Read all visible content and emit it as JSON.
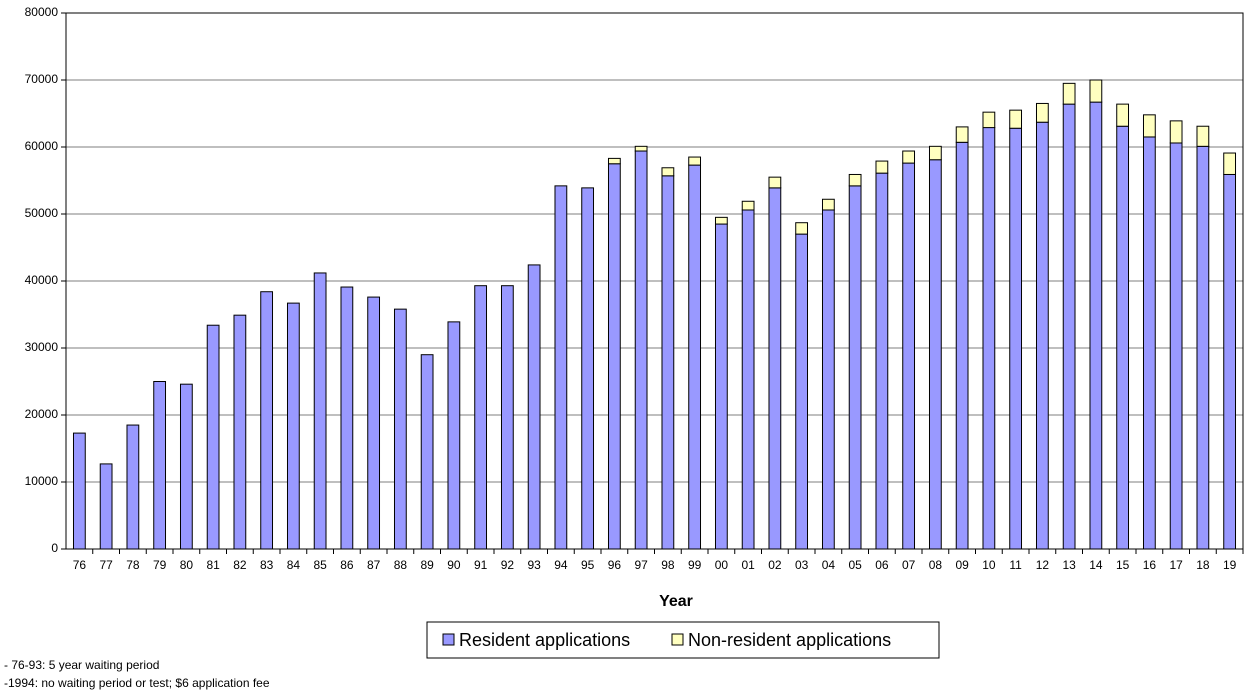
{
  "chart_data": {
    "type": "stacked-bar",
    "x_label": "Year",
    "categories": [
      "76",
      "77",
      "78",
      "79",
      "80",
      "81",
      "82",
      "83",
      "84",
      "85",
      "86",
      "87",
      "88",
      "89",
      "90",
      "91",
      "92",
      "93",
      "94",
      "95",
      "96",
      "97",
      "98",
      "99",
      "00",
      "01",
      "02",
      "03",
      "04",
      "05",
      "06",
      "07",
      "08",
      "09",
      "10",
      "11",
      "12",
      "13",
      "14",
      "15",
      "16",
      "17",
      "18",
      "19"
    ],
    "series": [
      {
        "name": "Resident applications",
        "color": "#9999ff",
        "values": [
          17300,
          12700,
          18500,
          25000,
          24600,
          33400,
          34900,
          38400,
          36700,
          41200,
          39100,
          37600,
          35800,
          29000,
          33900,
          39300,
          39300,
          42400,
          54200,
          53900,
          57500,
          59400,
          55700,
          57300,
          48500,
          50600,
          53900,
          47000,
          50600,
          54200,
          56100,
          57600,
          58100,
          60700,
          62900,
          62800,
          63700,
          66400,
          66700,
          63100,
          61500,
          60600,
          60100,
          55900
        ]
      },
      {
        "name": "Non-resident applications",
        "color": "#ffffc0",
        "values": [
          0,
          0,
          0,
          0,
          0,
          0,
          0,
          0,
          0,
          0,
          0,
          0,
          0,
          0,
          0,
          0,
          0,
          0,
          0,
          0,
          800,
          700,
          1200,
          1200,
          1000,
          1300,
          1600,
          1700,
          1600,
          1700,
          1800,
          1800,
          2000,
          2300,
          2300,
          2700,
          2800,
          3100,
          3300,
          3300,
          3300,
          3300,
          3000,
          3200
        ]
      }
    ],
    "ylim": [
      0,
      80000
    ],
    "yticks": [
      0,
      10000,
      20000,
      30000,
      40000,
      50000,
      60000,
      70000,
      80000
    ],
    "grid": true,
    "legend": "bottom",
    "notes": [
      "- 76-93: 5 year waiting period",
      "-1994: no waiting period or test; $6 application fee"
    ]
  }
}
